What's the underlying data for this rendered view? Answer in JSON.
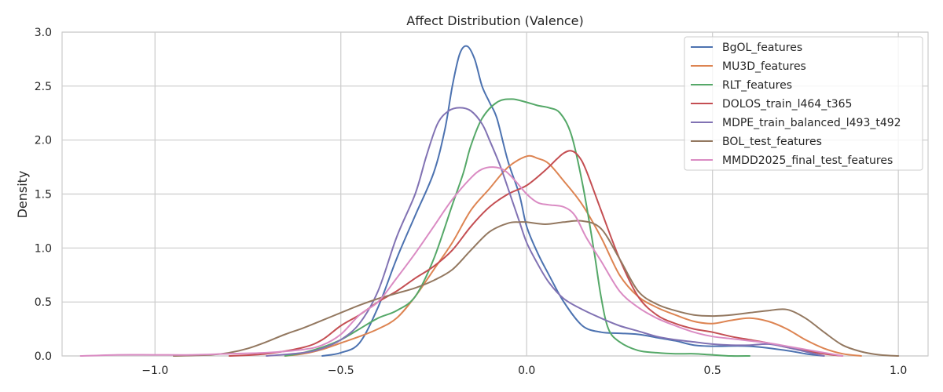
{
  "chart_data": {
    "type": "line",
    "title": "Affect Distribution (Valence)",
    "xlabel": "",
    "ylabel": "Density",
    "xlim": [
      -1.25,
      1.08
    ],
    "ylim": [
      0,
      3.0
    ],
    "xticks": [
      -1.0,
      -0.5,
      0.0,
      0.5,
      1.0
    ],
    "xtick_labels": [
      "−1.0",
      "−0.5",
      "0.0",
      "0.5",
      "1.0"
    ],
    "yticks": [
      0,
      0.5,
      1.0,
      1.5,
      2.0,
      2.5,
      3.0
    ],
    "ytick_labels": [
      "0.0",
      "0.5",
      "1.0",
      "1.5",
      "2.0",
      "2.5",
      "3.0"
    ],
    "grid": true,
    "legend_position": "top-right",
    "series": [
      {
        "name": "BgOL_features",
        "color": "#4c72b0",
        "x": [
          -0.55,
          -0.5,
          -0.45,
          -0.4,
          -0.35,
          -0.3,
          -0.25,
          -0.22,
          -0.2,
          -0.18,
          -0.16,
          -0.14,
          -0.12,
          -0.1,
          -0.08,
          -0.05,
          -0.02,
          0.0,
          0.03,
          0.06,
          0.1,
          0.15,
          0.2,
          0.25,
          0.3,
          0.35,
          0.4,
          0.45,
          0.5,
          0.6,
          0.7,
          0.75,
          0.8
        ],
        "values": [
          0.0,
          0.03,
          0.12,
          0.45,
          0.9,
          1.3,
          1.7,
          2.1,
          2.5,
          2.8,
          2.87,
          2.75,
          2.5,
          2.35,
          2.2,
          1.8,
          1.5,
          1.2,
          0.95,
          0.75,
          0.5,
          0.28,
          0.22,
          0.21,
          0.2,
          0.17,
          0.14,
          0.1,
          0.09,
          0.09,
          0.05,
          0.02,
          0.0
        ]
      },
      {
        "name": "MU3D_features",
        "color": "#dd8452",
        "x": [
          -0.65,
          -0.6,
          -0.55,
          -0.5,
          -0.45,
          -0.4,
          -0.35,
          -0.3,
          -0.25,
          -0.2,
          -0.15,
          -0.1,
          -0.05,
          0.0,
          0.03,
          0.06,
          0.1,
          0.15,
          0.2,
          0.25,
          0.3,
          0.35,
          0.4,
          0.45,
          0.5,
          0.55,
          0.6,
          0.65,
          0.7,
          0.75,
          0.8,
          0.85,
          0.9
        ],
        "values": [
          0.0,
          0.02,
          0.06,
          0.12,
          0.18,
          0.25,
          0.35,
          0.55,
          0.8,
          1.05,
          1.35,
          1.55,
          1.75,
          1.85,
          1.83,
          1.78,
          1.62,
          1.4,
          1.1,
          0.75,
          0.55,
          0.45,
          0.38,
          0.32,
          0.3,
          0.33,
          0.35,
          0.32,
          0.25,
          0.15,
          0.07,
          0.02,
          0.0
        ]
      },
      {
        "name": "RLT_features",
        "color": "#55a868",
        "x": [
          -0.65,
          -0.6,
          -0.55,
          -0.5,
          -0.45,
          -0.4,
          -0.35,
          -0.3,
          -0.25,
          -0.2,
          -0.17,
          -0.15,
          -0.12,
          -0.08,
          -0.04,
          0.0,
          0.03,
          0.06,
          0.09,
          0.12,
          0.15,
          0.18,
          0.2,
          0.22,
          0.25,
          0.3,
          0.35,
          0.4,
          0.45,
          0.5,
          0.55,
          0.6
        ],
        "values": [
          0.0,
          0.03,
          0.08,
          0.15,
          0.25,
          0.35,
          0.42,
          0.55,
          0.9,
          1.4,
          1.7,
          1.95,
          2.2,
          2.35,
          2.38,
          2.35,
          2.32,
          2.3,
          2.25,
          2.05,
          1.6,
          1.0,
          0.55,
          0.25,
          0.13,
          0.05,
          0.03,
          0.02,
          0.02,
          0.01,
          0.0,
          0.0
        ]
      },
      {
        "name": "DOLOS_train_l464_t365",
        "color": "#c44e52",
        "x": [
          -0.8,
          -0.7,
          -0.6,
          -0.55,
          -0.5,
          -0.45,
          -0.4,
          -0.35,
          -0.3,
          -0.25,
          -0.2,
          -0.15,
          -0.1,
          -0.05,
          0.0,
          0.05,
          0.08,
          0.1,
          0.12,
          0.14,
          0.16,
          0.2,
          0.25,
          0.3,
          0.35,
          0.4,
          0.45,
          0.5,
          0.55,
          0.6,
          0.65,
          0.7,
          0.75,
          0.8,
          0.85
        ],
        "values": [
          0.0,
          0.02,
          0.08,
          0.15,
          0.28,
          0.38,
          0.5,
          0.6,
          0.72,
          0.83,
          0.98,
          1.2,
          1.38,
          1.5,
          1.58,
          1.72,
          1.82,
          1.88,
          1.9,
          1.85,
          1.72,
          1.35,
          0.9,
          0.55,
          0.38,
          0.3,
          0.25,
          0.22,
          0.18,
          0.15,
          0.12,
          0.08,
          0.05,
          0.02,
          0.0
        ]
      },
      {
        "name": "MDPE_train_balanced_l493_t492",
        "color": "#8172b3",
        "x": [
          -0.7,
          -0.6,
          -0.55,
          -0.5,
          -0.45,
          -0.4,
          -0.35,
          -0.3,
          -0.27,
          -0.24,
          -0.21,
          -0.18,
          -0.15,
          -0.12,
          -0.1,
          -0.07,
          -0.04,
          -0.02,
          0.0,
          0.03,
          0.06,
          0.1,
          0.15,
          0.2,
          0.25,
          0.3,
          0.35,
          0.4,
          0.45,
          0.5,
          0.55,
          0.6,
          0.65,
          0.7,
          0.75,
          0.8
        ],
        "values": [
          0.0,
          0.03,
          0.07,
          0.15,
          0.3,
          0.6,
          1.1,
          1.5,
          1.85,
          2.15,
          2.27,
          2.3,
          2.27,
          2.15,
          2.0,
          1.75,
          1.45,
          1.25,
          1.05,
          0.85,
          0.68,
          0.53,
          0.43,
          0.35,
          0.28,
          0.23,
          0.18,
          0.15,
          0.13,
          0.11,
          0.1,
          0.1,
          0.11,
          0.08,
          0.04,
          0.0
        ]
      },
      {
        "name": "BOL_test_features",
        "color": "#937860",
        "x": [
          -0.95,
          -0.85,
          -0.8,
          -0.75,
          -0.7,
          -0.65,
          -0.6,
          -0.55,
          -0.5,
          -0.45,
          -0.4,
          -0.35,
          -0.3,
          -0.25,
          -0.2,
          -0.15,
          -0.1,
          -0.05,
          -0.02,
          0.0,
          0.05,
          0.1,
          0.15,
          0.2,
          0.25,
          0.3,
          0.35,
          0.4,
          0.45,
          0.5,
          0.55,
          0.6,
          0.65,
          0.7,
          0.75,
          0.8,
          0.85,
          0.9,
          0.95,
          1.0
        ],
        "values": [
          0.0,
          0.01,
          0.03,
          0.07,
          0.13,
          0.2,
          0.26,
          0.33,
          0.4,
          0.47,
          0.53,
          0.58,
          0.63,
          0.7,
          0.8,
          0.98,
          1.15,
          1.23,
          1.24,
          1.24,
          1.22,
          1.24,
          1.25,
          1.18,
          0.9,
          0.6,
          0.48,
          0.42,
          0.38,
          0.37,
          0.38,
          0.4,
          0.42,
          0.43,
          0.35,
          0.22,
          0.1,
          0.04,
          0.01,
          0.0
        ]
      },
      {
        "name": "MMDD2025_final_test_features",
        "color": "#da8bc3",
        "x": [
          -1.2,
          -1.1,
          -1.0,
          -0.9,
          -0.8,
          -0.7,
          -0.6,
          -0.55,
          -0.5,
          -0.45,
          -0.4,
          -0.35,
          -0.3,
          -0.25,
          -0.2,
          -0.15,
          -0.12,
          -0.09,
          -0.06,
          -0.03,
          0.0,
          0.03,
          0.06,
          0.1,
          0.13,
          0.16,
          0.2,
          0.25,
          0.3,
          0.35,
          0.4,
          0.45,
          0.5,
          0.55,
          0.6,
          0.65,
          0.7,
          0.75,
          0.8,
          0.85
        ],
        "values": [
          0.0,
          0.01,
          0.01,
          0.01,
          0.02,
          0.03,
          0.06,
          0.1,
          0.2,
          0.38,
          0.5,
          0.72,
          0.95,
          1.2,
          1.45,
          1.65,
          1.73,
          1.75,
          1.72,
          1.62,
          1.5,
          1.42,
          1.4,
          1.38,
          1.3,
          1.1,
          0.88,
          0.6,
          0.45,
          0.35,
          0.28,
          0.22,
          0.18,
          0.16,
          0.14,
          0.12,
          0.09,
          0.06,
          0.03,
          0.0
        ]
      }
    ]
  }
}
